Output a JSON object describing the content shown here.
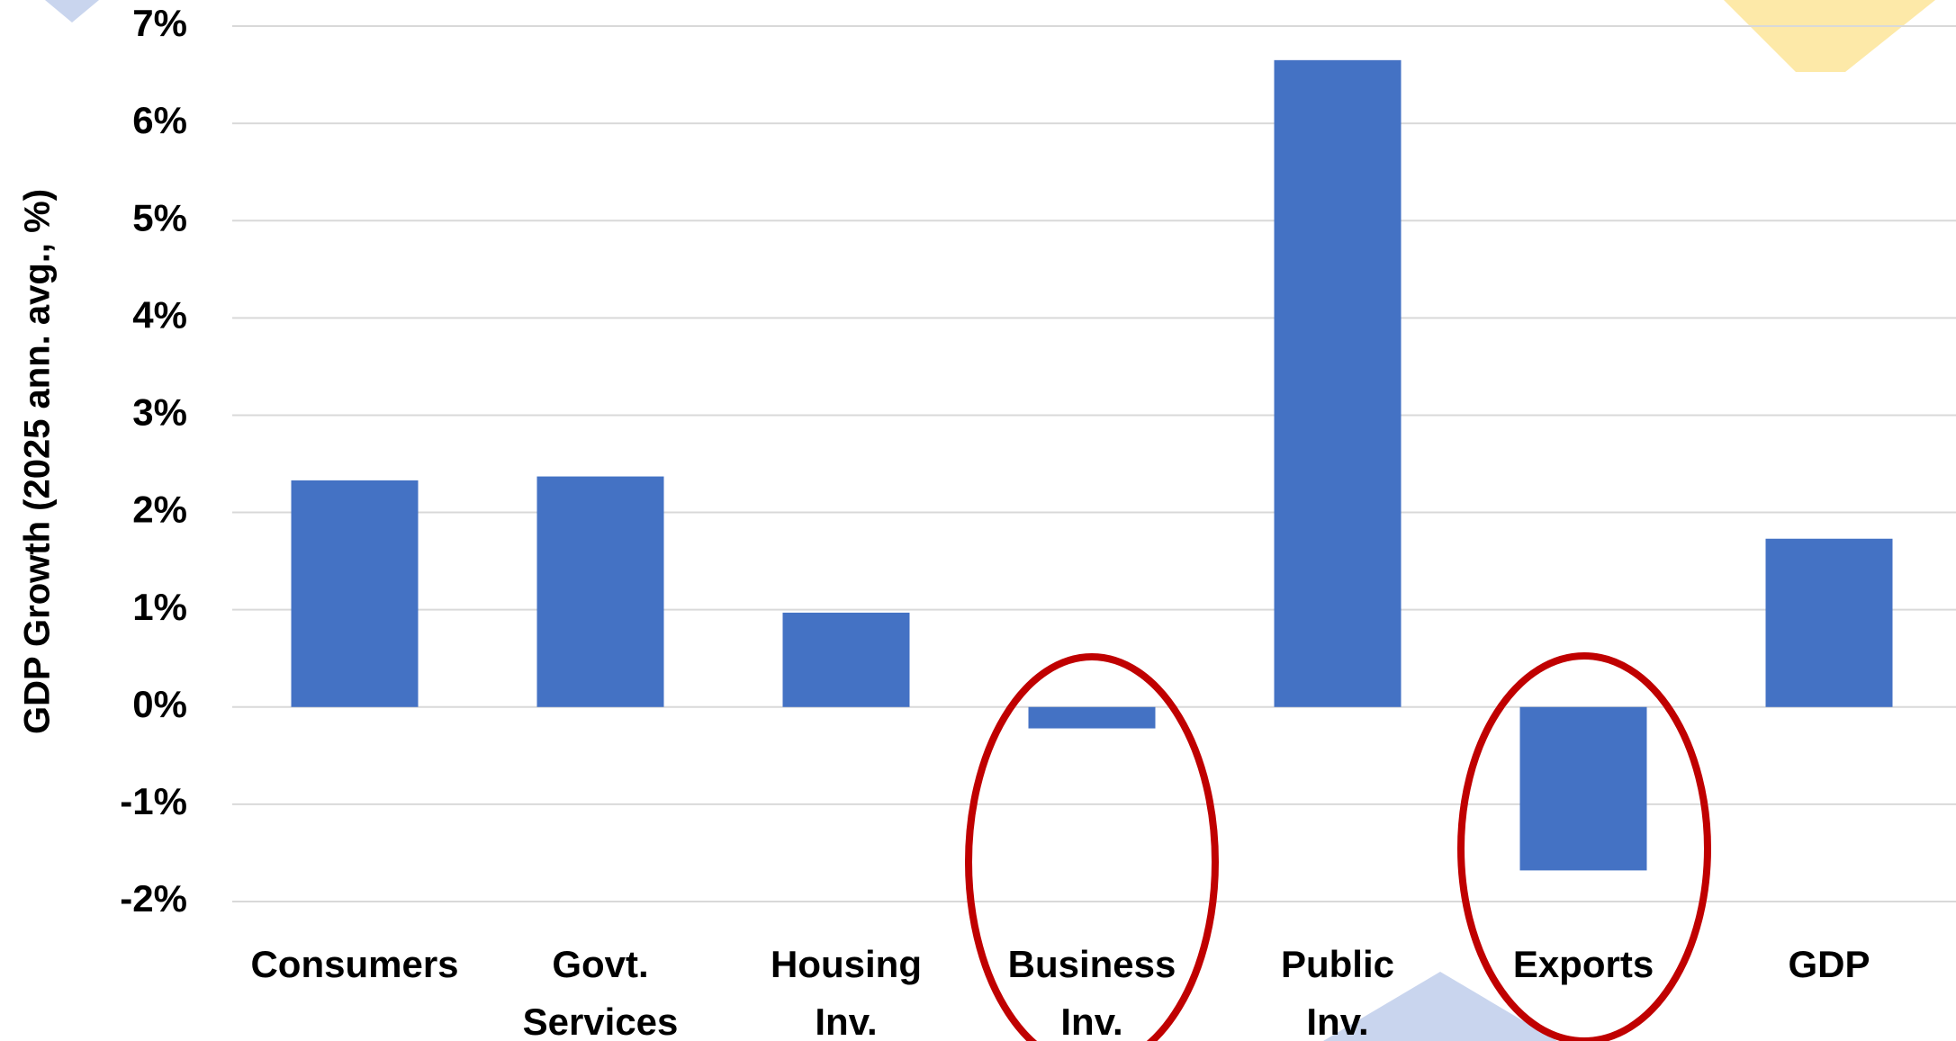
{
  "chart_data": {
    "type": "bar",
    "y_label": "GDP Growth (2025 ann. avg., %)",
    "categories": [
      "Consumers",
      "Govt. Services",
      "Housing Inv.",
      "Business Inv.",
      "Public Inv.",
      "Exports",
      "GDP"
    ],
    "values": [
      2.33,
      2.37,
      0.97,
      -0.22,
      6.65,
      -1.68,
      1.73
    ],
    "color": "#4472c4",
    "ylim": [
      -2,
      7
    ],
    "yticks": [
      {
        "value": -2,
        "label": "-2%"
      },
      {
        "value": -1,
        "label": "-1%"
      },
      {
        "value": 0,
        "label": "0%"
      },
      {
        "value": 1,
        "label": "1%"
      },
      {
        "value": 2,
        "label": "2%"
      },
      {
        "value": 3,
        "label": "3%"
      },
      {
        "value": 4,
        "label": "4%"
      },
      {
        "value": 5,
        "label": "5%"
      },
      {
        "value": 6,
        "label": "6%"
      },
      {
        "value": 7,
        "label": "7%"
      }
    ],
    "grid": true
  }
}
